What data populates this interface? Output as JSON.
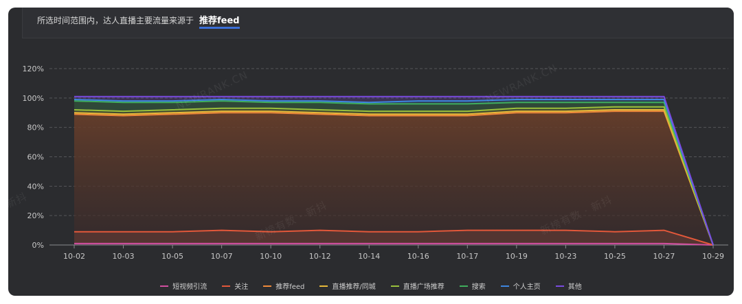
{
  "header": {
    "summary_text": "所选时间范围内，达人直播主要流量来源于",
    "summary_value": "推荐feed"
  },
  "watermarks": [
    "NEWRANK.CN",
    "NEWRANK.CN",
    "新榜有数 · 新抖",
    "新榜有数 · 新抖",
    "新抖"
  ],
  "colors": {
    "background": "#2b2c2f",
    "grid": "#55565a",
    "axis_text": "#c8c8c8",
    "accent": "#3b6fd8"
  },
  "chart_data": {
    "type": "area",
    "stacked": true,
    "categories": [
      "10-02",
      "10-03",
      "10-05",
      "10-07",
      "10-10",
      "10-12",
      "10-14",
      "10-16",
      "10-17",
      "10-19",
      "10-23",
      "10-25",
      "10-27",
      "10-29"
    ],
    "yticks": [
      "0%",
      "20%",
      "40%",
      "60%",
      "80%",
      "100%",
      "120%"
    ],
    "ylim": [
      0,
      120
    ],
    "grid": true,
    "legend_position": "bottom",
    "series": [
      {
        "name": "短视频引流",
        "color": "#d24fa0",
        "values": [
          1,
          1,
          1,
          1,
          1,
          1,
          1,
          1,
          1,
          1,
          1,
          1,
          1,
          0
        ]
      },
      {
        "name": "关注",
        "color": "#e4583a",
        "values": [
          8,
          8,
          8,
          9,
          8,
          9,
          8,
          8,
          9,
          9,
          9,
          8,
          9,
          0
        ]
      },
      {
        "name": "推荐feed",
        "color": "#f08a3a",
        "values": [
          80,
          79,
          80,
          80,
          81,
          79,
          79,
          79,
          78,
          80,
          80,
          82,
          81,
          0
        ]
      },
      {
        "name": "直播推荐/同城",
        "color": "#e8b93a",
        "values": [
          1,
          1,
          1,
          1,
          1,
          1,
          1,
          1,
          1,
          1,
          1,
          1,
          1,
          0
        ]
      },
      {
        "name": "直播广场推荐",
        "color": "#9ac13c",
        "values": [
          2,
          2,
          2,
          2,
          2,
          2,
          2,
          2,
          2,
          2,
          2,
          2,
          2,
          0
        ]
      },
      {
        "name": "搜索",
        "color": "#3fae5d",
        "values": [
          6,
          6,
          5,
          5,
          4,
          5,
          5,
          5,
          5,
          4,
          4,
          3,
          3,
          0
        ]
      },
      {
        "name": "个人主页",
        "color": "#3e86e0",
        "values": [
          1,
          1,
          1,
          1,
          1,
          1,
          1,
          2,
          2,
          2,
          2,
          2,
          2,
          0
        ]
      },
      {
        "name": "其他",
        "color": "#7a4be0",
        "values": [
          2,
          3,
          3,
          2,
          3,
          3,
          4,
          3,
          3,
          2,
          2,
          2,
          2,
          0
        ]
      }
    ]
  }
}
